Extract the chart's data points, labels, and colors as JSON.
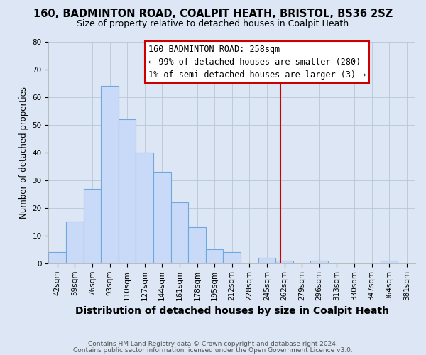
{
  "title1": "160, BADMINTON ROAD, COALPIT HEATH, BRISTOL, BS36 2SZ",
  "title2": "Size of property relative to detached houses in Coalpit Heath",
  "xlabel": "Distribution of detached houses by size in Coalpit Heath",
  "ylabel": "Number of detached properties",
  "bin_labels": [
    "42sqm",
    "59sqm",
    "76sqm",
    "93sqm",
    "110sqm",
    "127sqm",
    "144sqm",
    "161sqm",
    "178sqm",
    "195sqm",
    "212sqm",
    "228sqm",
    "245sqm",
    "262sqm",
    "279sqm",
    "296sqm",
    "313sqm",
    "330sqm",
    "347sqm",
    "364sqm",
    "381sqm"
  ],
  "bar_heights": [
    4,
    15,
    27,
    64,
    52,
    40,
    33,
    22,
    13,
    5,
    4,
    0,
    2,
    1,
    0,
    1,
    0,
    0,
    0,
    1,
    0
  ],
  "bar_color": "#c9daf8",
  "bar_edge_color": "#6fa8dc",
  "vline_color": "#cc0000",
  "annotation_line1": "160 BADMINTON ROAD: 258sqm",
  "annotation_line2": "← 99% of detached houses are smaller (280)",
  "annotation_line3": "1% of semi-detached houses are larger (3) →",
  "annotation_box_color": "#ffffff",
  "annotation_box_edge_color": "#cc0000",
  "footer1": "Contains HM Land Registry data © Crown copyright and database right 2024.",
  "footer2": "Contains public sector information licensed under the Open Government Licence v3.0.",
  "ylim": [
    0,
    80
  ],
  "yticks": [
    0,
    10,
    20,
    30,
    40,
    50,
    60,
    70,
    80
  ],
  "fig_bg_color": "#dce6f4",
  "plot_bg_color": "#dce6f4",
  "title1_fontsize": 10.5,
  "title2_fontsize": 9,
  "xlabel_fontsize": 10,
  "ylabel_fontsize": 8.5,
  "tick_fontsize": 7.5,
  "annotation_fontsize": 8.5,
  "footer_fontsize": 6.5
}
